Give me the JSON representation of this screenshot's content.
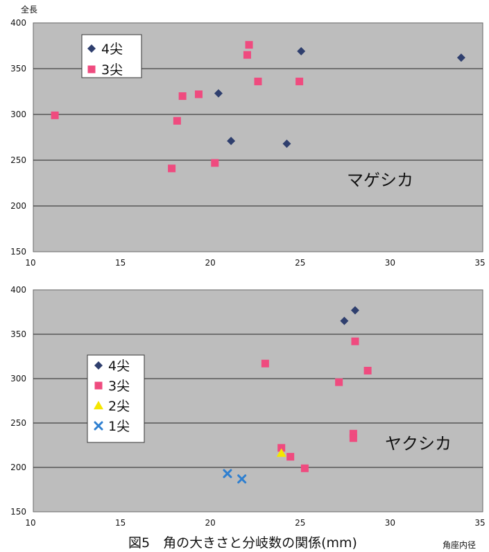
{
  "caption": "図5　角の大きさと分岐数の関係(mm)",
  "chart_data": [
    {
      "type": "scatter",
      "ylabel": "全長",
      "xlabel": "",
      "annotation": "マゲシカ",
      "xlim": [
        10,
        35
      ],
      "ylim": [
        150,
        400
      ],
      "xticks": [
        10,
        15,
        20,
        25,
        30,
        35
      ],
      "yticks": [
        150,
        200,
        250,
        300,
        350,
        400
      ],
      "grid": true,
      "legend_position": "top-left",
      "series": [
        {
          "name": "4尖",
          "marker": "diamond",
          "color": "#2f3f6e",
          "points": [
            [
              20.3,
              323
            ],
            [
              21,
              271
            ],
            [
              24.1,
              268
            ],
            [
              24.9,
              369
            ],
            [
              33.8,
              362
            ]
          ]
        },
        {
          "name": "3尖",
          "marker": "square",
          "color": "#ef4b7f",
          "points": [
            [
              11.2,
              299
            ],
            [
              17.7,
              241
            ],
            [
              18,
              293
            ],
            [
              18.3,
              320
            ],
            [
              19.2,
              322
            ],
            [
              20.1,
              247
            ],
            [
              21.9,
              365
            ],
            [
              22,
              376
            ],
            [
              22.5,
              336
            ],
            [
              24.8,
              336
            ]
          ]
        }
      ]
    },
    {
      "type": "scatter",
      "ylabel": "",
      "xlabel": "角座内径",
      "annotation": "ヤクシカ",
      "xlim": [
        10,
        35
      ],
      "ylim": [
        150,
        400
      ],
      "xticks": [
        10,
        15,
        20,
        25,
        30,
        35
      ],
      "yticks": [
        150,
        200,
        250,
        300,
        350,
        400
      ],
      "grid": true,
      "legend_position": "center-left",
      "series": [
        {
          "name": "4尖",
          "marker": "diamond",
          "color": "#2f3f6e",
          "points": [
            [
              27.3,
              365
            ],
            [
              27.9,
              377
            ]
          ]
        },
        {
          "name": "3尖",
          "marker": "square",
          "color": "#ef4b7f",
          "points": [
            [
              22.9,
              317
            ],
            [
              23.8,
              222
            ],
            [
              24.3,
              212
            ],
            [
              25.1,
              199
            ],
            [
              27,
              296
            ],
            [
              27.8,
              238
            ],
            [
              27.8,
              233
            ],
            [
              27.9,
              342
            ],
            [
              28.6,
              309
            ]
          ]
        },
        {
          "name": "2尖",
          "marker": "triangle",
          "color": "#f5e600",
          "points": [
            [
              23.8,
              216
            ]
          ]
        },
        {
          "name": "1尖",
          "marker": "cross",
          "color": "#2e7fd0",
          "points": [
            [
              20.8,
              193
            ],
            [
              21.6,
              187
            ]
          ]
        }
      ]
    }
  ]
}
